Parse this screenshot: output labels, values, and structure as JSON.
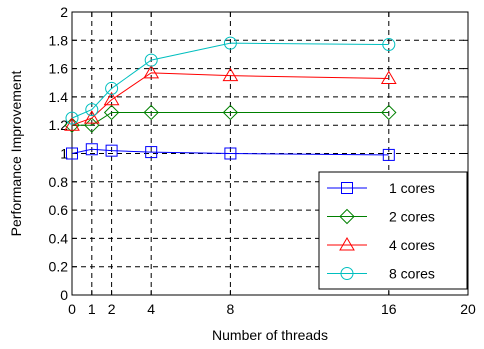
{
  "chart_data": {
    "type": "line",
    "xlabel": "Number of threads",
    "ylabel": "Performance Improvement",
    "xlim": [
      0,
      20
    ],
    "ylim": [
      0,
      2
    ],
    "xticks": [
      0,
      1,
      2,
      4,
      8,
      16,
      20
    ],
    "yticks": [
      0,
      0.2,
      0.4,
      0.6,
      0.8,
      1,
      1.2,
      1.4,
      1.6,
      1.8,
      2
    ],
    "grid": true,
    "grid_style": "dashed",
    "legend_position": "bottom-right",
    "x": [
      0,
      1,
      2,
      4,
      8,
      16
    ],
    "series": [
      {
        "name": "1 cores",
        "values": [
          1.0,
          1.03,
          1.02,
          1.01,
          1.0,
          0.99
        ],
        "color": "#0000ff",
        "marker": "square"
      },
      {
        "name": "2 cores",
        "values": [
          1.2,
          1.2,
          1.29,
          1.29,
          1.29,
          1.29
        ],
        "color": "#008000",
        "marker": "diamond"
      },
      {
        "name": "4 cores",
        "values": [
          1.2,
          1.25,
          1.38,
          1.57,
          1.55,
          1.53
        ],
        "color": "#ff0000",
        "marker": "triangle"
      },
      {
        "name": "8 cores",
        "values": [
          1.25,
          1.31,
          1.46,
          1.66,
          1.78,
          1.77
        ],
        "color": "#00bfbf",
        "marker": "circle"
      }
    ]
  }
}
